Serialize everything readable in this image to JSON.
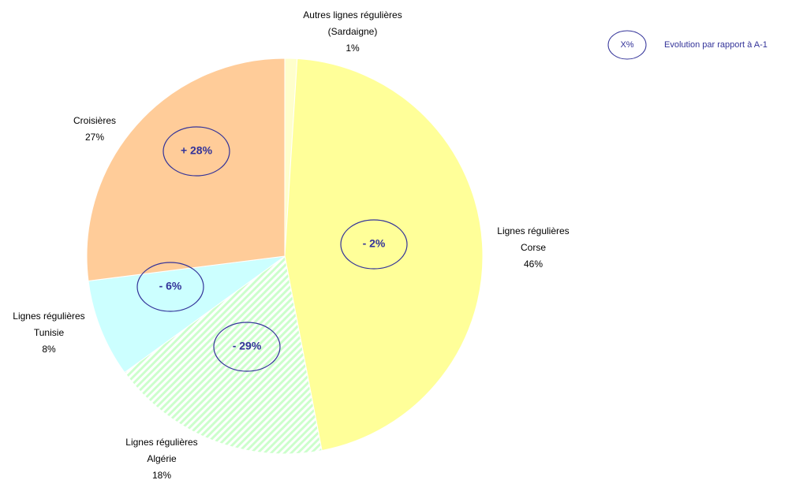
{
  "chart_data": {
    "type": "pie",
    "categories": [
      [
        "Autres lignes régulières",
        "(Sardaigne)"
      ],
      [
        "Lignes régulières",
        "Corse"
      ],
      [
        "Lignes régulières",
        "Algérie"
      ],
      [
        "Lignes régulières",
        "Tunisie"
      ],
      [
        "Croisières"
      ]
    ],
    "values": [
      1,
      46,
      18,
      8,
      27
    ],
    "value_labels": [
      "1%",
      "46%",
      "18%",
      "8%",
      "27%"
    ],
    "colors": [
      "#ffffcc",
      "#ffff99",
      "#ccffcc",
      "#ccffff",
      "#ffcc99"
    ],
    "evolution_labels": [
      null,
      "- 2%",
      "- 29%",
      "- 6%",
      "+ 28%"
    ],
    "legend": {
      "symbol": "X%",
      "text": "Evolution par rapport à A-1"
    }
  }
}
